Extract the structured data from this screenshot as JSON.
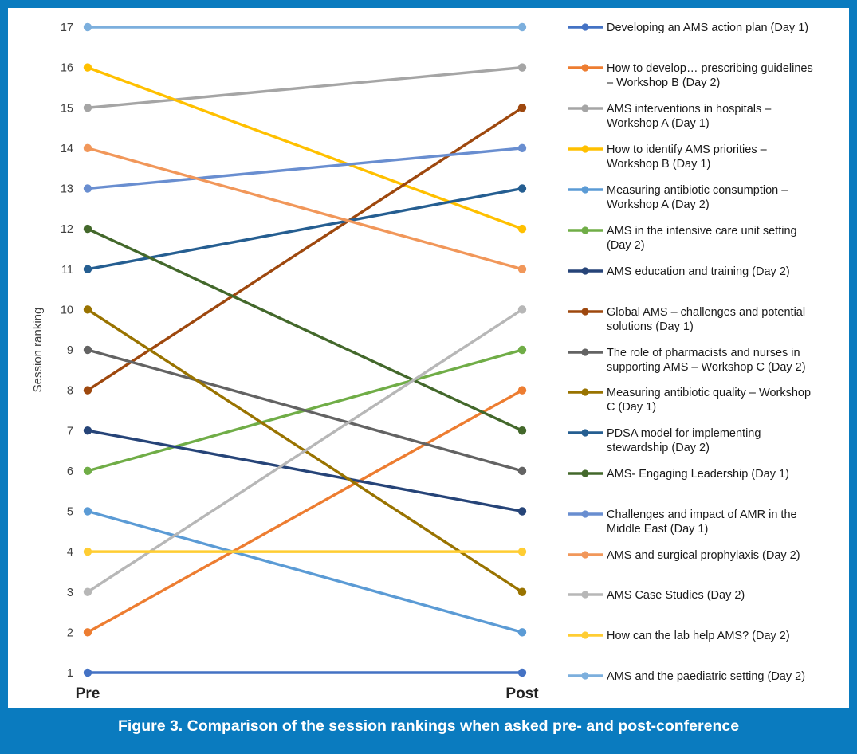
{
  "caption": "Figure 3. Comparison of the session rankings when asked pre- and post-conference",
  "chart_data": {
    "type": "line",
    "categories": [
      "Pre",
      "Post"
    ],
    "ylabel": "Session ranking",
    "ylim": [
      1,
      17
    ],
    "yticks": [
      1,
      2,
      3,
      4,
      5,
      6,
      7,
      8,
      9,
      10,
      11,
      12,
      13,
      14,
      15,
      16,
      17
    ],
    "grid": false,
    "legend_position": "right",
    "series": [
      {
        "name": "Developing an AMS action plan (Day 1)",
        "lines": [
          "Developing an AMS action plan (Day 1)"
        ],
        "color": "#4472c4",
        "values": [
          1,
          1
        ]
      },
      {
        "name": "How to develop… prescribing guidelines – Workshop B (Day 2)",
        "lines": [
          "How to develop… prescribing guidelines",
          "– Workshop B (Day 2)"
        ],
        "color": "#ed7d31",
        "values": [
          2,
          8
        ]
      },
      {
        "name": "AMS interventions in hospitals – Workshop A (Day 1)",
        "lines": [
          "AMS interventions in hospitals –",
          "Workshop A (Day 1)"
        ],
        "color": "#a5a5a5",
        "values": [
          15,
          16
        ]
      },
      {
        "name": "How to identify AMS priorities – Workshop B (Day 1)",
        "lines": [
          "How to identify AMS priorities –",
          "Workshop B (Day 1)"
        ],
        "color": "#ffc000",
        "values": [
          16,
          12
        ]
      },
      {
        "name": "Measuring antibiotic consumption – Workshop A (Day 2)",
        "lines": [
          "Measuring antibiotic consumption –",
          "Workshop A (Day 2)"
        ],
        "color": "#5b9bd5",
        "values": [
          5,
          2
        ]
      },
      {
        "name": "AMS in the intensive care unit setting (Day 2)",
        "lines": [
          "AMS in the intensive care unit setting",
          "(Day 2)"
        ],
        "color": "#70ad47",
        "values": [
          6,
          9
        ]
      },
      {
        "name": "AMS education and training (Day 2)",
        "lines": [
          "AMS education and training   (Day 2)"
        ],
        "color": "#264478",
        "values": [
          7,
          5
        ]
      },
      {
        "name": "Global AMS – challenges and potential solutions (Day 1)",
        "lines": [
          "Global AMS – challenges and potential",
          "solutions (Day 1)"
        ],
        "color": "#9e480e",
        "values": [
          8,
          15
        ]
      },
      {
        "name": "The role of pharmacists and nurses in supporting AMS – Workshop C (Day 2)",
        "lines": [
          "The role of pharmacists and nurses in",
          "supporting AMS – Workshop C (Day 2)"
        ],
        "color": "#636363",
        "values": [
          9,
          6
        ]
      },
      {
        "name": "Measuring antibiotic quality – Workshop C (Day 1)",
        "lines": [
          "Measuring antibiotic quality – Workshop",
          "C (Day 1)"
        ],
        "color": "#997300",
        "values": [
          10,
          3
        ]
      },
      {
        "name": "PDSA model for implementing stewardship (Day 2)",
        "lines": [
          "PDSA model for implementing",
          "stewardship (Day 2)"
        ],
        "color": "#255e91",
        "values": [
          11,
          13
        ]
      },
      {
        "name": "AMS- Engaging Leadership (Day 1)",
        "lines": [
          "AMS- Engaging Leadership (Day 1)"
        ],
        "color": "#43682b",
        "values": [
          12,
          7
        ]
      },
      {
        "name": "Challenges and impact of AMR in the Middle East (Day 1)",
        "lines": [
          "Challenges and impact of AMR in the",
          "Middle East (Day 1)"
        ],
        "color": "#698ed0",
        "values": [
          13,
          14
        ]
      },
      {
        "name": "AMS and surgical prophylaxis (Day 2)",
        "lines": [
          "AMS and surgical prophylaxis (Day 2)"
        ],
        "color": "#f1975a",
        "values": [
          14,
          11
        ]
      },
      {
        "name": "AMS Case Studies (Day 2)",
        "lines": [
          "AMS Case Studies (Day 2)"
        ],
        "color": "#b7b7b7",
        "values": [
          3,
          10
        ]
      },
      {
        "name": "How can the lab help AMS? (Day 2)",
        "lines": [
          "How can the lab help AMS? (Day 2)"
        ],
        "color": "#ffcd33",
        "values": [
          4,
          4
        ]
      },
      {
        "name": "AMS and the paediatric setting (Day 2)",
        "lines": [
          "AMS and the paediatric setting (Day 2)"
        ],
        "color": "#7cafdd",
        "values": [
          17,
          17
        ]
      }
    ]
  }
}
